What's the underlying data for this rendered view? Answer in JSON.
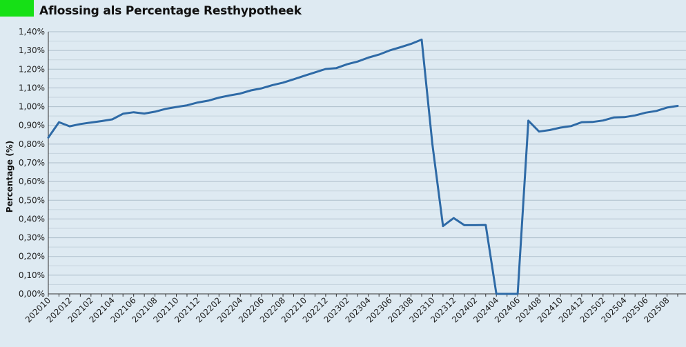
{
  "header": {
    "swatch_color": "#16e016",
    "title": "Aflossing als Percentage Resthypotheek"
  },
  "chart_data": {
    "type": "line",
    "title": "Aflossing als Percentage Resthypotheek",
    "xlabel": "",
    "ylabel": "Percentage (%)",
    "ylim": [
      0,
      1.4
    ],
    "y_ticks": [
      "0,00%",
      "0,10%",
      "0,20%",
      "0,30%",
      "0,40%",
      "0,50%",
      "0,60%",
      "0,70%",
      "0,80%",
      "0,90%",
      "1,00%",
      "1,10%",
      "1,20%",
      "1,30%",
      "1,40%"
    ],
    "y_minor_step": 0.05,
    "grid": true,
    "line_color": "#2e6aa6",
    "x": [
      "202010",
      "202011",
      "202012",
      "202101",
      "202102",
      "202103",
      "202104",
      "202105",
      "202106",
      "202107",
      "202108",
      "202109",
      "202110",
      "202111",
      "202112",
      "202201",
      "202202",
      "202203",
      "202204",
      "202205",
      "202206",
      "202207",
      "202208",
      "202209",
      "202210",
      "202211",
      "202212",
      "202301",
      "202302",
      "202303",
      "202304",
      "202305",
      "202306",
      "202307",
      "202308",
      "202309",
      "202310",
      "202311",
      "202312",
      "202401",
      "202402",
      "202403",
      "202404",
      "202405",
      "202406",
      "202407",
      "202408",
      "202409",
      "202410",
      "202411",
      "202412",
      "202501",
      "202502",
      "202503",
      "202504",
      "202505",
      "202506",
      "202507",
      "202508",
      "202509"
    ],
    "x_tick_labels": [
      "202010",
      "202012",
      "202102",
      "202104",
      "202106",
      "202108",
      "202110",
      "202112",
      "202202",
      "202204",
      "202206",
      "202208",
      "202210",
      "202212",
      "202302",
      "202304",
      "202306",
      "202308",
      "202310",
      "202312",
      "202402",
      "202404",
      "202406",
      "202408",
      "202410",
      "202412",
      "202502",
      "202504",
      "202506",
      "202508"
    ],
    "values": [
      0.835,
      0.917,
      0.895,
      0.907,
      0.915,
      0.923,
      0.932,
      0.962,
      0.97,
      0.963,
      0.973,
      0.988,
      0.998,
      1.007,
      1.022,
      1.032,
      1.048,
      1.06,
      1.07,
      1.087,
      1.098,
      1.115,
      1.128,
      1.146,
      1.165,
      1.183,
      1.201,
      1.206,
      1.226,
      1.241,
      1.262,
      1.278,
      1.3,
      1.317,
      1.335,
      1.358,
      0.8,
      0.362,
      0.405,
      0.367,
      0.367,
      0.368,
      0.0,
      0.0,
      0.0,
      0.925,
      0.867,
      0.875,
      0.888,
      0.896,
      0.917,
      0.918,
      0.926,
      0.942,
      0.944,
      0.953,
      0.968,
      0.977,
      0.995,
      1.004
    ]
  }
}
